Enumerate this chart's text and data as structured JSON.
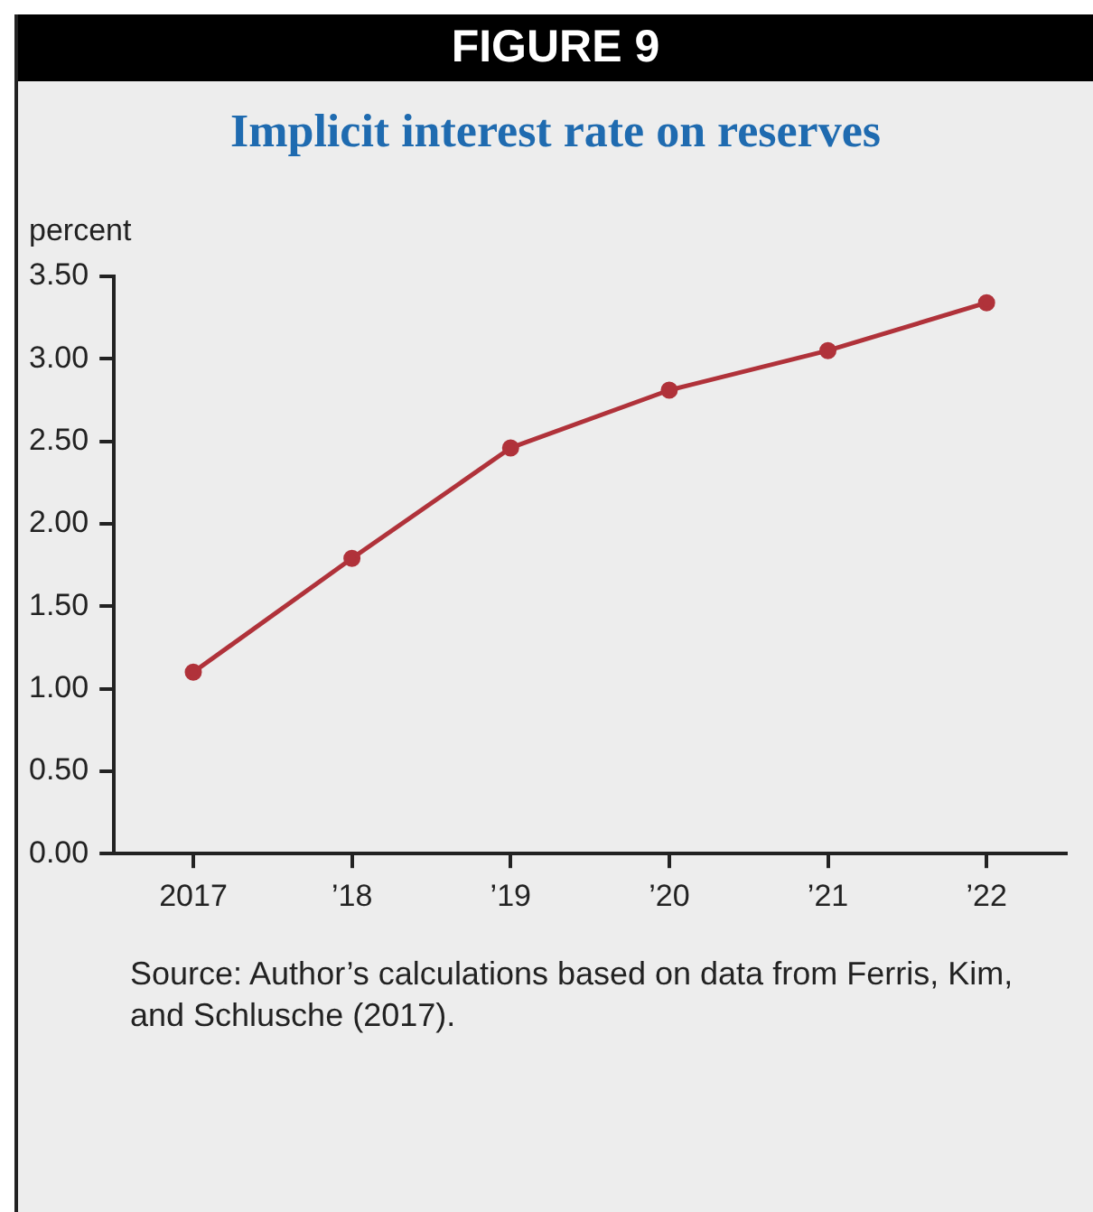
{
  "chart_data": {
    "type": "line",
    "title": "Implicit interest rate on reserves",
    "ylabel": "percent",
    "categories": [
      "2017",
      "’18",
      "’19",
      "’20",
      "’21",
      "’22"
    ],
    "series": [
      {
        "color": "#b0323a",
        "values": [
          1.1,
          1.79,
          2.46,
          2.81,
          3.05,
          3.34
        ]
      }
    ],
    "ylim": [
      0,
      3.5
    ],
    "yticks": [
      {
        "value": 0,
        "label": "0.00"
      },
      {
        "value": 0.5,
        "label": "0.50"
      },
      {
        "value": 1,
        "label": "1.00"
      },
      {
        "value": 1.5,
        "label": "1.50"
      },
      {
        "value": 2,
        "label": "2.00"
      },
      {
        "value": 2.5,
        "label": "2.50"
      },
      {
        "value": 3,
        "label": "3.00"
      },
      {
        "value": 3.5,
        "label": "3.50"
      }
    ],
    "grid": false,
    "legend": false,
    "marker": "circle",
    "line_style": "solid",
    "annotations": [
      "FIGURE 9",
      "Source: Author’s calculations based on data from Ferris, Kim, and Schlusche (2017)."
    ]
  }
}
